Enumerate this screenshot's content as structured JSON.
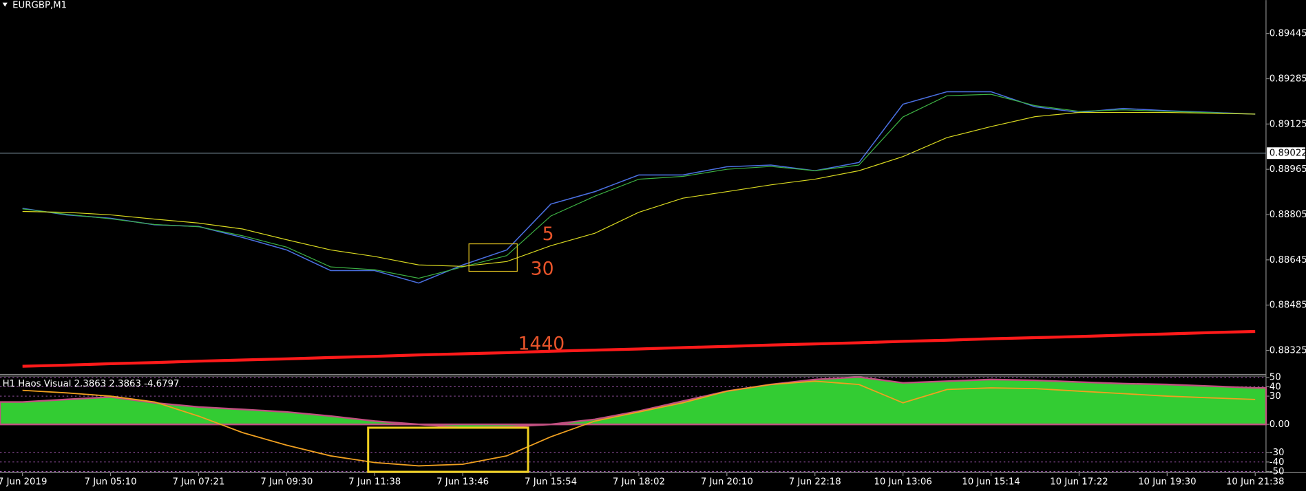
{
  "chart_data": [
    {
      "type": "line",
      "title": "EURGBP,M1",
      "categories": [
        "7 Jun 2019",
        null,
        "7 Jun 05:10",
        null,
        "7 Jun 07:21",
        null,
        "7 Jun 09:30",
        null,
        "7 Jun 11:38",
        null,
        "7 Jun 13:46",
        null,
        "7 Jun 15:54",
        null,
        "7 Jun 18:02",
        null,
        "7 Jun 20:10",
        null,
        "7 Jun 22:18",
        null,
        "10 Jun 13:06",
        null,
        "10 Jun 15:14",
        null,
        "10 Jun 17:22",
        null,
        "10 Jun 19:30",
        null,
        "10 Jun 21:38"
      ],
      "series": [
        {
          "color": "#4a6fe0",
          "values": [
            0.88827,
            0.88804,
            0.88792,
            0.88769,
            0.88763,
            0.88724,
            0.8868,
            0.88607,
            0.88607,
            0.88563,
            0.88627,
            0.8868,
            0.88842,
            0.88886,
            0.88945,
            0.88945,
            0.88974,
            0.8898,
            0.8896,
            0.88989,
            0.89195,
            0.89239,
            0.89239,
            0.89186,
            0.89166,
            0.8918,
            0.89172,
            0.89166,
            0.8916
          ]
        },
        {
          "name": "5",
          "color": "#3cb043",
          "values": [
            0.88825,
            0.88806,
            0.8879,
            0.8877,
            0.88762,
            0.8873,
            0.8869,
            0.8862,
            0.8861,
            0.8858,
            0.8862,
            0.8866,
            0.888,
            0.8887,
            0.8893,
            0.8894,
            0.88965,
            0.88975,
            0.8896,
            0.8898,
            0.8915,
            0.89225,
            0.8923,
            0.8919,
            0.8917,
            0.89175,
            0.8917,
            0.89165,
            0.8916
          ]
        },
        {
          "name": "30",
          "color": "#d8d820",
          "values": [
            0.88816,
            0.88813,
            0.88804,
            0.88789,
            0.88775,
            0.88754,
            0.88716,
            0.8868,
            0.88657,
            0.88627,
            0.88622,
            0.88639,
            0.88695,
            0.88739,
            0.88813,
            0.88863,
            0.88886,
            0.8891,
            0.8893,
            0.8896,
            0.8901,
            0.89077,
            0.89116,
            0.89151,
            0.89166,
            0.89166,
            0.89166,
            0.89163,
            0.8916
          ]
        },
        {
          "name": "1440",
          "color": "#ff1a1a",
          "values": [
            0.88269,
            0.88273,
            0.88278,
            0.88282,
            0.88287,
            0.88291,
            0.88295,
            0.883,
            0.88304,
            0.88309,
            0.88313,
            0.88317,
            0.88322,
            0.88326,
            0.8833,
            0.88335,
            0.88339,
            0.88344,
            0.88348,
            0.88352,
            0.88357,
            0.88361,
            0.88366,
            0.8837,
            0.88374,
            0.88379,
            0.88383,
            0.88388,
            0.88392
          ]
        }
      ],
      "last_price": 0.89022,
      "ylim": [
        0.8824,
        0.89563
      ],
      "yticks": [
        0.89445,
        0.89285,
        0.89125,
        0.88965,
        0.88805,
        0.88645,
        0.88485,
        0.88325
      ],
      "grid": false
    },
    {
      "type": "area",
      "title": "H1 Haos Visual 2.3863 2.3863 -4.6797",
      "series": [
        {
          "color": "#33cc33",
          "values": [
            23.8,
            26.5,
            29.1,
            22.9,
            18.5,
            15.9,
            13.2,
            8.8,
            3.5,
            0,
            -3.5,
            -2.6,
            0,
            5.3,
            14.1,
            24.7,
            35.3,
            42.4,
            47.7,
            50.3,
            44.1,
            45.9,
            47.7,
            46.8,
            45.0,
            43.3,
            42.4,
            40.6,
            38.8
          ]
        },
        {
          "color": "#f0a020",
          "values": [
            36.2,
            33.5,
            30.0,
            23.8,
            8.8,
            -8.8,
            -22.1,
            -33.5,
            -40.6,
            -44.1,
            -42.4,
            -33.5,
            -13.2,
            3.5,
            13.2,
            22.9,
            35.3,
            42.4,
            45.9,
            42.4,
            22.9,
            37.1,
            38.8,
            38.0,
            35.3,
            32.7,
            30.0,
            28.2,
            26.5
          ]
        }
      ],
      "ylim": [
        -51.3,
        51.3
      ],
      "yticks": [
        50,
        40,
        30,
        {
          "value": 0,
          "label": "0.00"
        },
        -30,
        -40,
        -50
      ],
      "grid": true
    }
  ]
}
